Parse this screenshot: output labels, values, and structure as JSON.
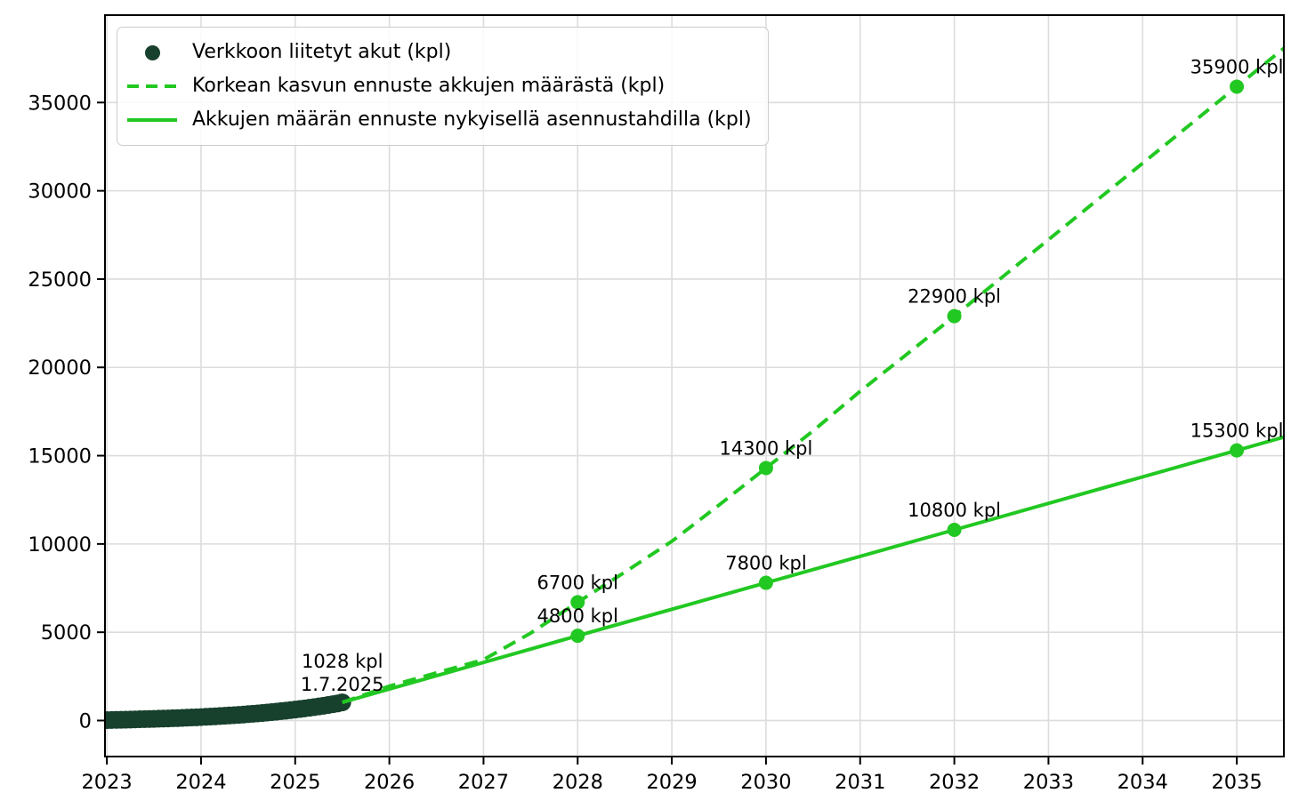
{
  "window": {
    "background": "#ffffff"
  },
  "colors": {
    "scatter_dark_green": "#17402d",
    "forecast_green": "#22c822",
    "grid": "#dcdcdc",
    "spine": "#000000",
    "text": "#000000",
    "legend_border": "#cccccc"
  },
  "chart_data": {
    "type": "line",
    "title": "",
    "xlabel": "",
    "ylabel": "",
    "grid": true,
    "legend_position": "upper-left",
    "xlim": [
      2022.98,
      2035.5
    ],
    "ylim": [
      -2040,
      39950
    ],
    "xticks": [
      2023,
      2024,
      2025,
      2026,
      2027,
      2028,
      2029,
      2030,
      2031,
      2032,
      2033,
      2034,
      2035
    ],
    "yticks": [
      0,
      5000,
      10000,
      15000,
      20000,
      25000,
      30000,
      35000
    ],
    "series": [
      {
        "name": "Verkkoon liitetyt akut (kpl)",
        "type": "scatter",
        "color": "#17402d",
        "marker_radius": 10,
        "points": [
          [
            2023.0,
            25
          ],
          [
            2023.05,
            32
          ],
          [
            2023.1,
            38
          ],
          [
            2023.15,
            45
          ],
          [
            2023.2,
            51
          ],
          [
            2023.25,
            58
          ],
          [
            2023.3,
            65
          ],
          [
            2023.35,
            72
          ],
          [
            2023.4,
            80
          ],
          [
            2023.45,
            87
          ],
          [
            2023.5,
            95
          ],
          [
            2023.55,
            103
          ],
          [
            2023.6,
            112
          ],
          [
            2023.65,
            121
          ],
          [
            2023.7,
            130
          ],
          [
            2023.75,
            140
          ],
          [
            2023.8,
            150
          ],
          [
            2023.85,
            161
          ],
          [
            2023.9,
            173
          ],
          [
            2023.95,
            184
          ],
          [
            2024.0,
            197
          ],
          [
            2024.05,
            210
          ],
          [
            2024.1,
            224
          ],
          [
            2024.15,
            238
          ],
          [
            2024.2,
            254
          ],
          [
            2024.25,
            270
          ],
          [
            2024.3,
            286
          ],
          [
            2024.35,
            304
          ],
          [
            2024.4,
            322
          ],
          [
            2024.45,
            341
          ],
          [
            2024.5,
            362
          ],
          [
            2024.55,
            383
          ],
          [
            2024.6,
            405
          ],
          [
            2024.65,
            428
          ],
          [
            2024.7,
            452
          ],
          [
            2024.75,
            478
          ],
          [
            2024.8,
            504
          ],
          [
            2024.85,
            532
          ],
          [
            2024.9,
            560
          ],
          [
            2024.95,
            590
          ],
          [
            2025.0,
            621
          ],
          [
            2025.05,
            654
          ],
          [
            2025.1,
            688
          ],
          [
            2025.15,
            723
          ],
          [
            2025.2,
            760
          ],
          [
            2025.25,
            798
          ],
          [
            2025.3,
            838
          ],
          [
            2025.35,
            879
          ],
          [
            2025.4,
            922
          ],
          [
            2025.45,
            966
          ],
          [
            2025.5,
            1028
          ]
        ]
      },
      {
        "name": "Korkean kasvun ennuste akkujen määrästä (kpl)",
        "type": "line",
        "line_style": "dashed",
        "color": "#22c822",
        "line_width": 4,
        "marker_radius": 8,
        "points": [
          [
            2025.5,
            1028
          ],
          [
            2026,
            1950
          ],
          [
            2026.5,
            2700
          ],
          [
            2027,
            3450
          ],
          [
            2027.5,
            4950
          ],
          [
            2028,
            6700
          ],
          [
            2028.5,
            8400
          ],
          [
            2029,
            10150
          ],
          [
            2029.5,
            12200
          ],
          [
            2030,
            14300
          ],
          [
            2030.5,
            16400
          ],
          [
            2031,
            18650
          ],
          [
            2031.5,
            20760
          ],
          [
            2032,
            22900
          ],
          [
            2032.5,
            25070
          ],
          [
            2033,
            27230
          ],
          [
            2033.5,
            29400
          ],
          [
            2034,
            31560
          ],
          [
            2034.5,
            33730
          ],
          [
            2035,
            35900
          ],
          [
            2035.5,
            38070
          ]
        ],
        "labeled_points": [
          [
            2028,
            6700
          ],
          [
            2030,
            14300
          ],
          [
            2032,
            22900
          ],
          [
            2035,
            35900
          ]
        ]
      },
      {
        "name": "Akkujen määrän ennuste nykyisellä asennustahdilla (kpl)",
        "type": "line",
        "line_style": "solid",
        "color": "#22c822",
        "line_width": 4,
        "marker_radius": 8,
        "points": [
          [
            2025.5,
            1028
          ],
          [
            2028,
            4800
          ],
          [
            2030,
            7800
          ],
          [
            2032,
            10800
          ],
          [
            2035,
            15300
          ],
          [
            2035.5,
            16050
          ]
        ],
        "labeled_points": [
          [
            2028,
            4800
          ],
          [
            2030,
            7800
          ],
          [
            2032,
            10800
          ],
          [
            2035,
            15300
          ]
        ]
      }
    ],
    "annotations": [
      {
        "x": 2025.5,
        "y": 1028,
        "lines": [
          "1028 kpl",
          "1.7.2025"
        ],
        "line_dy": [
          -39,
          -13
        ]
      },
      {
        "x": 2028,
        "y": 6700,
        "lines": [
          "6700 kpl"
        ],
        "line_dy": [
          -15
        ]
      },
      {
        "x": 2028,
        "y": 4800,
        "lines": [
          "4800 kpl"
        ],
        "line_dy": [
          -15
        ]
      },
      {
        "x": 2030,
        "y": 14300,
        "lines": [
          "14300 kpl"
        ],
        "line_dy": [
          -15
        ]
      },
      {
        "x": 2030,
        "y": 7800,
        "lines": [
          "7800 kpl"
        ],
        "line_dy": [
          -15
        ]
      },
      {
        "x": 2032,
        "y": 22900,
        "lines": [
          "22900 kpl"
        ],
        "line_dy": [
          -15
        ]
      },
      {
        "x": 2032,
        "y": 10800,
        "lines": [
          "10800 kpl"
        ],
        "line_dy": [
          -15
        ]
      },
      {
        "x": 2035,
        "y": 35900,
        "lines": [
          "35900 kpl"
        ],
        "line_dy": [
          -15
        ]
      },
      {
        "x": 2035,
        "y": 15300,
        "lines": [
          "15300 kpl"
        ],
        "line_dy": [
          -15
        ]
      }
    ]
  }
}
